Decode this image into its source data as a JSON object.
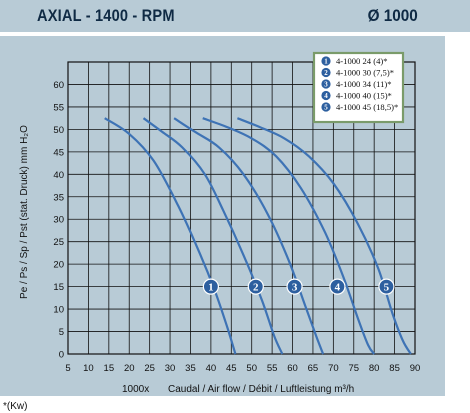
{
  "header": {
    "title": "AXIAL - 1400 - RPM",
    "diameter": "Ø 1000"
  },
  "footnote": "*(Kw)",
  "colors": {
    "panel": "#b8cbd6",
    "curve": "#3e73b5",
    "badge": "#2d5f9f",
    "text": "#0f2a44"
  },
  "chart_data": {
    "type": "line",
    "xlabel": "Caudal / Air flow / Débit / Luftleistung m³/h",
    "xlabel_prefix": "1000x",
    "ylabel": "Pe / Ps / Sp / Pst (stat. Druck) mm H₂O",
    "xlim": [
      5,
      90
    ],
    "ylim": [
      0,
      65
    ],
    "x_ticks": [
      5,
      10,
      15,
      20,
      25,
      30,
      35,
      40,
      45,
      50,
      55,
      60,
      65,
      70,
      75,
      80,
      85,
      90
    ],
    "y_ticks": [
      0,
      5,
      10,
      15,
      20,
      25,
      30,
      35,
      40,
      45,
      50,
      55,
      60
    ],
    "grid": true,
    "legend_position": "top-right",
    "series": [
      {
        "name": "4-1000 24 (4)*",
        "badge": "1",
        "x": [
          14,
          20,
          26,
          32,
          37,
          41,
          44,
          46
        ],
        "y": [
          52.5,
          49,
          43,
          33,
          23,
          14,
          6,
          0
        ]
      },
      {
        "name": "4-1000 30 (7,5)*",
        "badge": "2",
        "x": [
          23.5,
          28,
          33,
          38.5,
          43,
          48,
          52.5,
          55.5,
          57.5
        ],
        "y": [
          52.5,
          49.5,
          46,
          40,
          32,
          22,
          12,
          4,
          0
        ]
      },
      {
        "name": "4-1000 34 (11)*",
        "badge": "3",
        "x": [
          31,
          36,
          42,
          48,
          54,
          59,
          63,
          66,
          67.5
        ],
        "y": [
          52.5,
          49.5,
          46,
          40,
          31,
          21,
          11,
          3.5,
          0
        ]
      },
      {
        "name": "4-1000 40 (15)*",
        "badge": "4",
        "x": [
          38,
          44,
          50,
          56,
          62,
          68,
          72.5,
          76,
          78.5,
          80
        ],
        "y": [
          52.5,
          50.5,
          48,
          44,
          37,
          27,
          17,
          8,
          2,
          0
        ]
      },
      {
        "name": "4-1000 45 (18,5)*",
        "badge": "5",
        "x": [
          46.5,
          52,
          58,
          64,
          70,
          76,
          81,
          84.5,
          87,
          89
        ],
        "y": [
          52.5,
          50.5,
          48,
          44,
          38,
          29,
          19,
          9,
          3,
          0
        ]
      }
    ],
    "badge_positions": [
      {
        "x": 40,
        "y": 15
      },
      {
        "x": 51,
        "y": 15
      },
      {
        "x": 60.5,
        "y": 15
      },
      {
        "x": 71,
        "y": 15
      },
      {
        "x": 83,
        "y": 15
      }
    ]
  }
}
